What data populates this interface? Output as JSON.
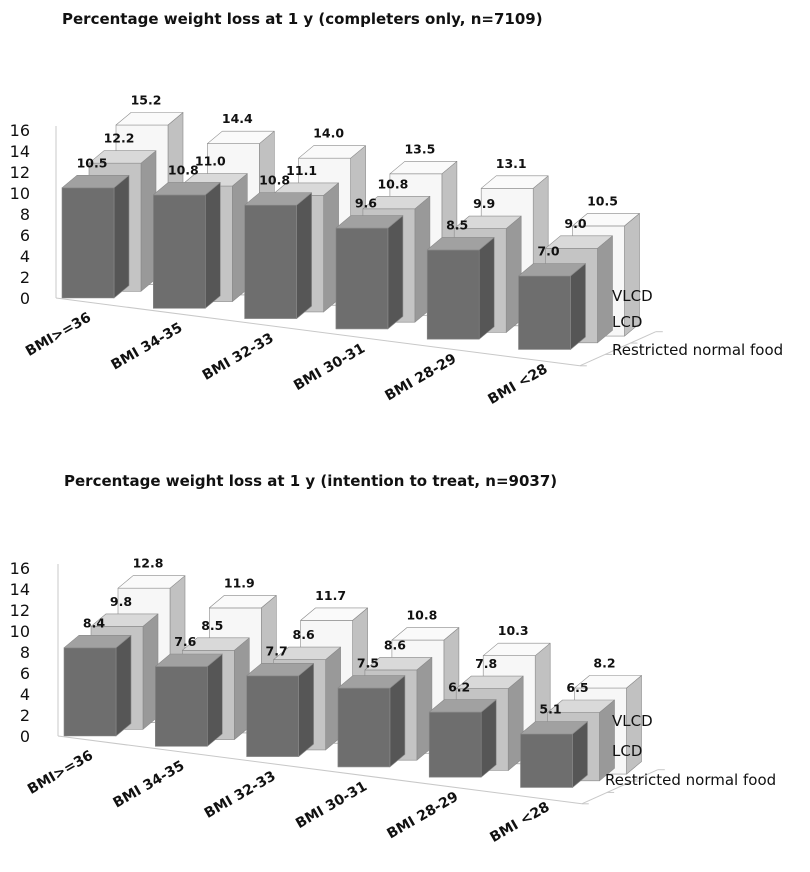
{
  "chart_data": [
    {
      "type": "bar",
      "title": "Percentage weight loss at 1 y (completers only, n=7109)",
      "categories": [
        "BMI>=36",
        "BMI 34-35",
        "BMI 32-33",
        "BMI 30-31",
        "BMI 28-29",
        "BMI <28"
      ],
      "series": [
        {
          "name": "Restricted normal food",
          "values": [
            10.5,
            10.8,
            10.8,
            9.6,
            8.5,
            7.0
          ]
        },
        {
          "name": "LCD",
          "values": [
            12.2,
            11.0,
            11.1,
            10.8,
            9.9,
            9.0
          ]
        },
        {
          "name": "VLCD",
          "values": [
            15.2,
            14.4,
            14.0,
            13.5,
            13.1,
            10.5
          ]
        }
      ],
      "ylim": [
        0,
        16
      ],
      "yticks": [
        "0",
        "2",
        "4",
        "6",
        "8",
        "10",
        "12",
        "14",
        "16"
      ],
      "data_labels": [
        [
          "10.5",
          "10.8",
          "10.8",
          "9.6",
          "8.5",
          "7.0"
        ],
        [
          "12.2",
          "11.0",
          "11.1",
          "10.8",
          "9.9",
          "9.0"
        ],
        [
          "15.2",
          "14.4",
          "14.0",
          "13.5",
          "13.1",
          "10.5"
        ]
      ],
      "colors": [
        "#6e6e6e",
        "#c4c4c4",
        "#f7f7f7"
      ]
    },
    {
      "type": "bar",
      "title": "Percentage weight loss at 1 y (intention to treat, n=9037)",
      "categories": [
        "BMI>=36",
        "BMI 34-35",
        "BMI 32-33",
        "BMI 30-31",
        "BMI 28-29",
        "BMI <28"
      ],
      "series": [
        {
          "name": "Restricted normal food",
          "values": [
            8.4,
            7.6,
            7.7,
            7.5,
            6.2,
            5.1
          ]
        },
        {
          "name": "LCD",
          "values": [
            9.8,
            8.5,
            8.6,
            8.6,
            7.8,
            6.5
          ]
        },
        {
          "name": "VLCD",
          "values": [
            12.8,
            11.9,
            11.7,
            10.8,
            10.3,
            8.2
          ]
        }
      ],
      "ylim": [
        0,
        16
      ],
      "yticks": [
        "0",
        "2",
        "4",
        "6",
        "8",
        "10",
        "12",
        "14",
        "16"
      ],
      "data_labels": [
        [
          "8.4",
          "7.6",
          "7.7",
          "7.5",
          "6.2",
          "5.1"
        ],
        [
          "9.8",
          "8.5",
          "8.6",
          "8.6",
          "7.8",
          "6.5"
        ],
        [
          "12.8",
          "11.9",
          "11.7",
          "10.8",
          "10.3",
          "8.2"
        ]
      ],
      "colors": [
        "#6e6e6e",
        "#c4c4c4",
        "#f7f7f7"
      ]
    }
  ]
}
